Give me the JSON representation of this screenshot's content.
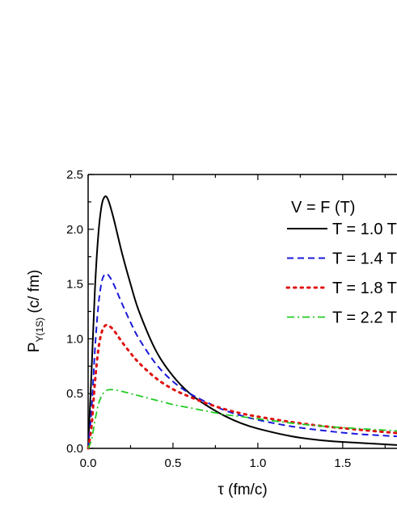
{
  "chart_data": {
    "type": "line",
    "title": "",
    "xlabel": "τ (fm/c)",
    "ylabel_main": "P",
    "ylabel_sub": "Υ(1S)",
    "ylabel_tail": " (c/ fm)",
    "xlim": [
      0.0,
      1.82
    ],
    "ylim": [
      0.0,
      2.5
    ],
    "xticks": [
      {
        "value": 0.0,
        "label": "0.0"
      },
      {
        "value": 0.5,
        "label": "0.5"
      },
      {
        "value": 1.0,
        "label": "1.0"
      },
      {
        "value": 1.5,
        "label": "1.5"
      }
    ],
    "yticks": [
      {
        "value": 0.0,
        "label": "0.0"
      },
      {
        "value": 0.5,
        "label": "0.5"
      },
      {
        "value": 1.0,
        "label": "1.0"
      },
      {
        "value": 1.5,
        "label": "1.5"
      },
      {
        "value": 2.0,
        "label": "2.0"
      },
      {
        "value": 2.5,
        "label": "2.5"
      }
    ],
    "grid": false,
    "legend_position": "top-right",
    "legend_title": "V = F (T)",
    "series": [
      {
        "name": "T = 1.0 T",
        "color": "#000000",
        "dash": "solid",
        "x": [
          0.0,
          0.02,
          0.04,
          0.06,
          0.08,
          0.1,
          0.12,
          0.15,
          0.2,
          0.25,
          0.3,
          0.4,
          0.5,
          0.6,
          0.7,
          0.8,
          0.9,
          1.0,
          1.2,
          1.4,
          1.6,
          1.82
        ],
        "y": [
          0.0,
          0.7,
          1.45,
          1.95,
          2.22,
          2.3,
          2.26,
          2.1,
          1.78,
          1.5,
          1.25,
          0.89,
          0.66,
          0.5,
          0.39,
          0.3,
          0.23,
          0.18,
          0.11,
          0.07,
          0.05,
          0.03
        ]
      },
      {
        "name": "T = 1.4 T",
        "color": "#1a1adc",
        "dash": "dashed",
        "x": [
          0.0,
          0.02,
          0.04,
          0.06,
          0.08,
          0.1,
          0.12,
          0.15,
          0.2,
          0.25,
          0.3,
          0.4,
          0.5,
          0.6,
          0.7,
          0.8,
          0.9,
          1.0,
          1.2,
          1.4,
          1.6,
          1.82
        ],
        "y": [
          0.0,
          0.35,
          0.9,
          1.3,
          1.52,
          1.59,
          1.58,
          1.5,
          1.32,
          1.15,
          1.0,
          0.77,
          0.61,
          0.5,
          0.42,
          0.35,
          0.3,
          0.26,
          0.2,
          0.16,
          0.13,
          0.11
        ]
      },
      {
        "name": "T = 1.8 T",
        "color": "#e01010",
        "dash": "dotted",
        "x": [
          0.0,
          0.02,
          0.04,
          0.06,
          0.08,
          0.1,
          0.12,
          0.15,
          0.2,
          0.25,
          0.3,
          0.4,
          0.5,
          0.6,
          0.7,
          0.8,
          0.9,
          1.0,
          1.2,
          1.4,
          1.6,
          1.82
        ],
        "y": [
          0.0,
          0.2,
          0.6,
          0.9,
          1.06,
          1.12,
          1.12,
          1.08,
          0.97,
          0.87,
          0.78,
          0.64,
          0.54,
          0.47,
          0.41,
          0.36,
          0.32,
          0.29,
          0.24,
          0.2,
          0.17,
          0.14
        ]
      },
      {
        "name": "T = 2.2 T",
        "color": "#22cc22",
        "dash": "dashdot",
        "x": [
          0.0,
          0.02,
          0.04,
          0.06,
          0.08,
          0.1,
          0.12,
          0.15,
          0.2,
          0.25,
          0.3,
          0.4,
          0.5,
          0.6,
          0.7,
          0.8,
          0.9,
          1.0,
          1.2,
          1.4,
          1.6,
          1.82
        ],
        "y": [
          0.0,
          0.08,
          0.25,
          0.4,
          0.48,
          0.52,
          0.535,
          0.535,
          0.52,
          0.5,
          0.48,
          0.44,
          0.4,
          0.37,
          0.34,
          0.31,
          0.29,
          0.27,
          0.23,
          0.2,
          0.18,
          0.16
        ]
      }
    ]
  }
}
